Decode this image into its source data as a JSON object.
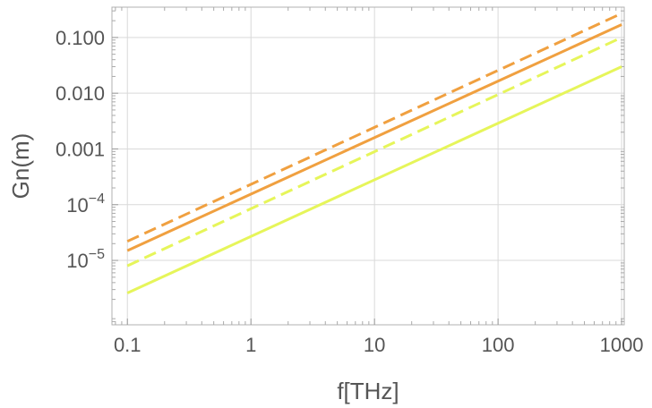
{
  "chart_data": {
    "type": "line",
    "xlabel": "f[THz]",
    "ylabel": "Gn(m)",
    "x_scale": "log",
    "y_scale": "log",
    "xlim": [
      0.075,
      1050
    ],
    "ylim": [
      7e-07,
      0.35
    ],
    "grid": true,
    "x_ticks": [
      {
        "value": 0.1,
        "label": "0.1"
      },
      {
        "value": 1,
        "label": "1"
      },
      {
        "value": 10,
        "label": "10"
      },
      {
        "value": 100,
        "label": "100"
      },
      {
        "value": 1000,
        "label": "1000"
      }
    ],
    "y_ticks": [
      {
        "value": 1e-05,
        "label": "10",
        "exp": "−5"
      },
      {
        "value": 0.0001,
        "label": "10",
        "exp": "−4"
      },
      {
        "value": 0.001,
        "label": "0.001",
        "exp": ""
      },
      {
        "value": 0.01,
        "label": "0.010",
        "exp": ""
      },
      {
        "value": 0.1,
        "label": "0.100",
        "exp": ""
      }
    ],
    "series": [
      {
        "color": "#f0a040",
        "dash": true,
        "x": [
          0.1,
          1000
        ],
        "y": [
          2.2e-05,
          0.27
        ]
      },
      {
        "color": "#f0a040",
        "dash": false,
        "x": [
          0.1,
          1000
        ],
        "y": [
          1.5e-05,
          0.17
        ]
      },
      {
        "color": "#e6f55a",
        "dash": true,
        "x": [
          0.1,
          1000
        ],
        "y": [
          8e-06,
          0.1
        ]
      },
      {
        "color": "#e6f55a",
        "dash": false,
        "x": [
          0.1,
          1000
        ],
        "y": [
          2.6e-06,
          0.03
        ]
      }
    ]
  }
}
